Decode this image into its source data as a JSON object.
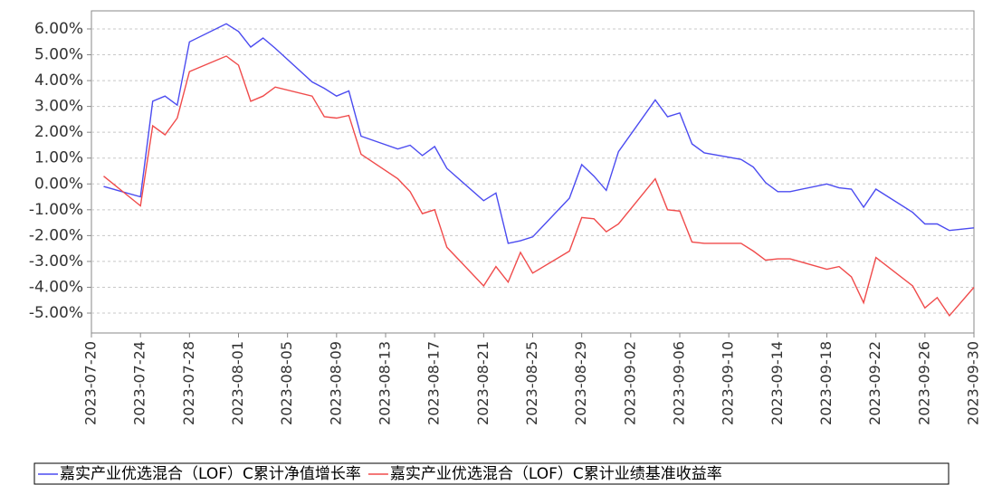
{
  "chart_data": {
    "type": "line",
    "x": [
      "2023-07-21",
      "2023-07-24",
      "2023-07-25",
      "2023-07-26",
      "2023-07-27",
      "2023-07-28",
      "2023-07-31",
      "2023-08-01",
      "2023-08-02",
      "2023-08-03",
      "2023-08-04",
      "2023-08-07",
      "2023-08-08",
      "2023-08-09",
      "2023-08-10",
      "2023-08-11",
      "2023-08-14",
      "2023-08-15",
      "2023-08-16",
      "2023-08-17",
      "2023-08-18",
      "2023-08-21",
      "2023-08-22",
      "2023-08-23",
      "2023-08-24",
      "2023-08-25",
      "2023-08-28",
      "2023-08-29",
      "2023-08-30",
      "2023-08-31",
      "2023-09-01",
      "2023-09-04",
      "2023-09-05",
      "2023-09-06",
      "2023-09-07",
      "2023-09-08",
      "2023-09-11",
      "2023-09-12",
      "2023-09-13",
      "2023-09-14",
      "2023-09-15",
      "2023-09-18",
      "2023-09-19",
      "2023-09-20",
      "2023-09-21",
      "2023-09-22",
      "2023-09-25",
      "2023-09-26",
      "2023-09-27",
      "2023-09-28",
      "2023-09-30"
    ],
    "series": [
      {
        "name": "嘉实产业优选混合（LOF）C累计净值增长率",
        "color": "#4b4bf0",
        "values": [
          -0.1,
          -0.5,
          3.2,
          3.4,
          3.05,
          5.5,
          6.2,
          5.9,
          5.3,
          5.65,
          5.25,
          3.95,
          3.7,
          3.4,
          3.6,
          1.85,
          1.35,
          1.5,
          1.1,
          1.45,
          0.6,
          -0.65,
          -0.35,
          -2.3,
          -2.2,
          -2.05,
          -0.55,
          0.75,
          0.3,
          -0.25,
          1.25,
          3.25,
          2.6,
          2.75,
          1.55,
          1.2,
          0.95,
          0.65,
          0.05,
          -0.3,
          -0.3,
          0.0,
          -0.15,
          -0.2,
          -0.9,
          -0.2,
          -1.1,
          -1.55,
          -1.55,
          -1.8,
          -1.7
        ]
      },
      {
        "name": "嘉实产业优选混合（LOF）C累计业绩基准收益率",
        "color": "#f04b4b",
        "values": [
          0.3,
          -0.85,
          2.25,
          1.9,
          2.55,
          4.35,
          4.95,
          4.6,
          3.2,
          3.4,
          3.75,
          3.4,
          2.6,
          2.55,
          2.65,
          1.15,
          0.2,
          -0.3,
          -1.15,
          -1.0,
          -2.45,
          -3.95,
          -3.2,
          -3.8,
          -2.65,
          -3.45,
          -2.6,
          -1.3,
          -1.35,
          -1.85,
          -1.55,
          0.2,
          -1.0,
          -1.05,
          -2.25,
          -2.3,
          -2.3,
          -2.6,
          -2.95,
          -2.9,
          -2.9,
          -3.3,
          -3.2,
          -3.6,
          -4.6,
          -2.85,
          -3.95,
          -4.8,
          -4.4,
          -5.1,
          -4.0
        ]
      }
    ],
    "xlim": [
      "2023-07-20",
      "2023-09-30"
    ],
    "xticks": [
      "2023-07-20",
      "2023-07-24",
      "2023-07-28",
      "2023-08-01",
      "2023-08-05",
      "2023-08-09",
      "2023-08-13",
      "2023-08-17",
      "2023-08-21",
      "2023-08-25",
      "2023-08-29",
      "2023-09-02",
      "2023-09-06",
      "2023-09-10",
      "2023-09-14",
      "2023-09-18",
      "2023-09-22",
      "2023-09-26",
      "2023-09-30"
    ],
    "ylim": [
      -5.77,
      6.7
    ],
    "yticks": [
      {
        "value": -5,
        "label": "-5.00%"
      },
      {
        "value": -4,
        "label": "-4.00%"
      },
      {
        "value": -3,
        "label": "-3.00%"
      },
      {
        "value": -2,
        "label": "-2.00%"
      },
      {
        "value": -1,
        "label": "-1.00%"
      },
      {
        "value": 0,
        "label": "0.00%"
      },
      {
        "value": 1,
        "label": "1.00%"
      },
      {
        "value": 2,
        "label": "2.00%"
      },
      {
        "value": 3,
        "label": "3.00%"
      },
      {
        "value": 4,
        "label": "4.00%"
      },
      {
        "value": 5,
        "label": "5.00%"
      },
      {
        "value": 6,
        "label": "6.00%"
      }
    ],
    "grid": true
  }
}
